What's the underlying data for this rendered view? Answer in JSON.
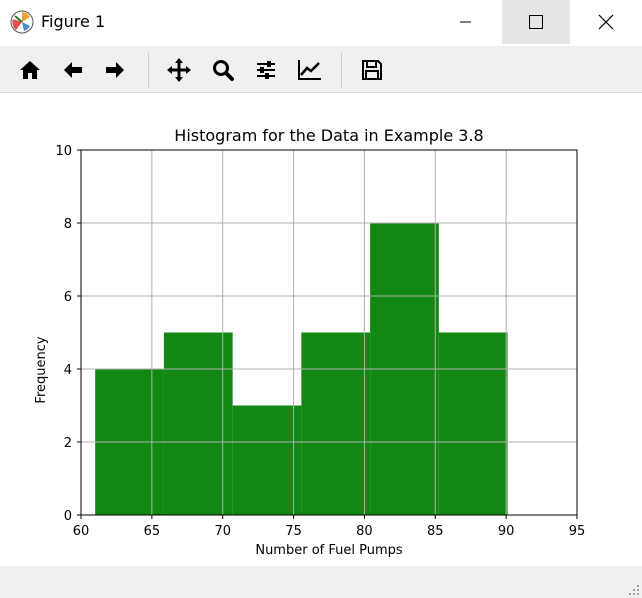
{
  "window": {
    "title": "Figure 1"
  },
  "toolbar": {
    "tools": [
      "home-icon",
      "back-arrow-icon",
      "forward-arrow-icon",
      "pan-icon",
      "zoom-icon",
      "configure-subplots-icon",
      "edit-axis-icon",
      "save-icon"
    ]
  },
  "chart_data": {
    "type": "bar",
    "title": "Histogram for the Data in Example 3.8",
    "xlabel": "Number of Fuel Pumps",
    "ylabel": "Frequency",
    "xlim": [
      60,
      95
    ],
    "ylim": [
      0,
      10
    ],
    "xticks": [
      "60",
      "65",
      "70",
      "75",
      "80",
      "85",
      "90",
      "95"
    ],
    "yticks": [
      "0",
      "2",
      "4",
      "6",
      "8",
      "10"
    ],
    "bins": [
      {
        "x0": 61.0,
        "x1": 65.85,
        "value": 4
      },
      {
        "x0": 65.85,
        "x1": 70.7,
        "value": 5
      },
      {
        "x0": 70.7,
        "x1": 75.55,
        "value": 3
      },
      {
        "x0": 75.55,
        "x1": 80.4,
        "value": 5
      },
      {
        "x0": 80.4,
        "x1": 85.25,
        "value": 8
      },
      {
        "x0": 85.25,
        "x1": 90.1,
        "value": 5
      }
    ],
    "bar_color": "#118811",
    "grid": true
  }
}
